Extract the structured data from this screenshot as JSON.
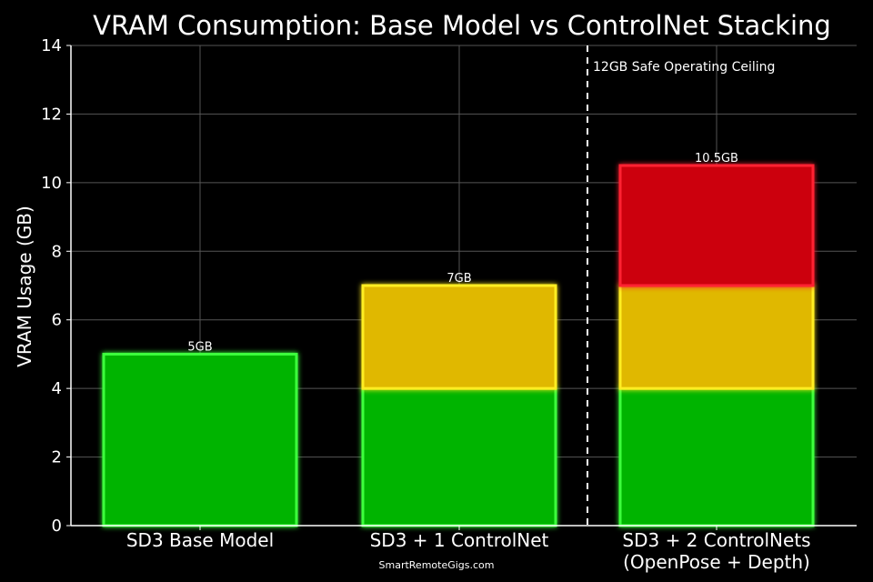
{
  "chart_data": {
    "type": "bar",
    "stacked": true,
    "title": "VRAM Consumption: Base Model vs ControlNet Stacking",
    "xlabel": "",
    "ylabel": "VRAM Usage (GB)",
    "ylim": [
      0,
      14
    ],
    "yticks": [
      "0",
      "2",
      "4",
      "6",
      "8",
      "10",
      "12",
      "14"
    ],
    "grid": true,
    "categories": [
      [
        "SD3 Base Model"
      ],
      [
        "SD3 + 1 ControlNet"
      ],
      [
        "SD3 + 2 ControlNets",
        "(OpenPose + Depth)"
      ]
    ],
    "bars": [
      {
        "total_label": "5GB",
        "segments": [
          {
            "from": 0,
            "to": 5,
            "color": "#00b400"
          }
        ]
      },
      {
        "total_label": "7GB",
        "segments": [
          {
            "from": 0,
            "to": 4,
            "color": "#00b400"
          },
          {
            "from": 4,
            "to": 7,
            "color": "#e0b800"
          }
        ]
      },
      {
        "total_label": "10.5GB",
        "segments": [
          {
            "from": 0,
            "to": 4,
            "color": "#00b400"
          },
          {
            "from": 4,
            "to": 7,
            "color": "#e0b800"
          },
          {
            "from": 7,
            "to": 10.5,
            "color": "#cc0010"
          }
        ]
      }
    ],
    "annotation": {
      "text": "12GB Safe Operating Ceiling"
    },
    "colors": {
      "green": "#00b400",
      "green_glow": "#3dff3d",
      "yellow": "#e0b800",
      "yellow_glow": "#ffee22",
      "red": "#cc0010",
      "red_glow": "#ff2030",
      "grid": "#555555",
      "background": "#000000"
    }
  },
  "footer": {
    "watermark": "SmartRemoteGigs.com"
  }
}
